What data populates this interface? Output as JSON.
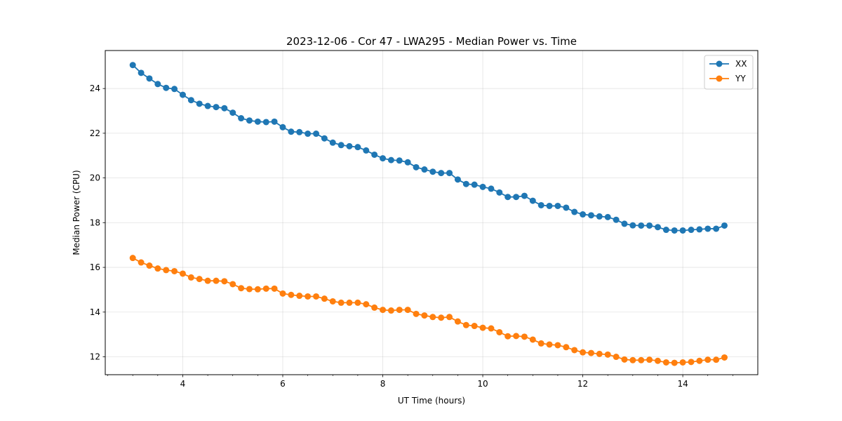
{
  "chart_data": {
    "type": "line",
    "title": "2023-12-06 - Cor 47 - LWA295 - Median Power vs. Time",
    "xlabel": "UT Time (hours)",
    "ylabel": "Median Power (CPU)",
    "xlim": [
      2.45,
      15.5
    ],
    "ylim": [
      11.2,
      25.7
    ],
    "xticks": [
      4,
      6,
      8,
      10,
      12,
      14
    ],
    "yticks": [
      12,
      14,
      16,
      18,
      20,
      22,
      24
    ],
    "grid": true,
    "legend_position": "top-right",
    "x": [
      3.0,
      3.167,
      3.333,
      3.5,
      3.667,
      3.833,
      4.0,
      4.167,
      4.333,
      4.5,
      4.667,
      4.833,
      5.0,
      5.167,
      5.333,
      5.5,
      5.667,
      5.833,
      6.0,
      6.167,
      6.333,
      6.5,
      6.667,
      6.833,
      7.0,
      7.167,
      7.333,
      7.5,
      7.667,
      7.833,
      8.0,
      8.167,
      8.333,
      8.5,
      8.667,
      8.833,
      9.0,
      9.167,
      9.333,
      9.5,
      9.667,
      9.833,
      10.0,
      10.167,
      10.333,
      10.5,
      10.667,
      10.833,
      11.0,
      11.167,
      11.333,
      11.5,
      11.667,
      11.833,
      12.0,
      12.167,
      12.333,
      12.5,
      12.667,
      12.833,
      13.0,
      13.167,
      13.333,
      13.5,
      13.667,
      13.833,
      14.0,
      14.167,
      14.333,
      14.5,
      14.667,
      14.833
    ],
    "series": [
      {
        "name": "XX",
        "color": "#1f77b4",
        "values": [
          25.05,
          24.7,
          24.45,
          24.2,
          24.03,
          23.98,
          23.72,
          23.48,
          23.32,
          23.22,
          23.17,
          23.12,
          22.92,
          22.67,
          22.57,
          22.52,
          22.5,
          22.52,
          22.27,
          22.07,
          22.05,
          21.98,
          21.98,
          21.77,
          21.58,
          21.47,
          21.42,
          21.38,
          21.23,
          21.04,
          20.88,
          20.8,
          20.78,
          20.7,
          20.48,
          20.38,
          20.28,
          20.22,
          20.22,
          19.93,
          19.73,
          19.7,
          19.6,
          19.52,
          19.35,
          19.15,
          19.15,
          19.2,
          18.98,
          18.78,
          18.75,
          18.75,
          18.67,
          18.48,
          18.37,
          18.33,
          18.28,
          18.25,
          18.13,
          17.95,
          17.88,
          17.87,
          17.87,
          17.8,
          17.68,
          17.65,
          17.65,
          17.68,
          17.7,
          17.73,
          17.73,
          17.87
        ]
      },
      {
        "name": "YY",
        "color": "#ff7f0e",
        "values": [
          16.42,
          16.22,
          16.08,
          15.95,
          15.88,
          15.83,
          15.72,
          15.55,
          15.48,
          15.4,
          15.4,
          15.38,
          15.25,
          15.07,
          15.03,
          15.02,
          15.05,
          15.05,
          14.83,
          14.77,
          14.73,
          14.7,
          14.7,
          14.6,
          14.48,
          14.42,
          14.42,
          14.42,
          14.35,
          14.2,
          14.1,
          14.07,
          14.1,
          14.1,
          13.92,
          13.85,
          13.78,
          13.75,
          13.78,
          13.58,
          13.42,
          13.38,
          13.3,
          13.27,
          13.1,
          12.92,
          12.93,
          12.9,
          12.77,
          12.6,
          12.55,
          12.52,
          12.43,
          12.3,
          12.2,
          12.17,
          12.13,
          12.1,
          12.0,
          11.88,
          11.85,
          11.85,
          11.87,
          11.82,
          11.75,
          11.73,
          11.75,
          11.77,
          11.82,
          11.87,
          11.87,
          11.97
        ]
      }
    ]
  }
}
